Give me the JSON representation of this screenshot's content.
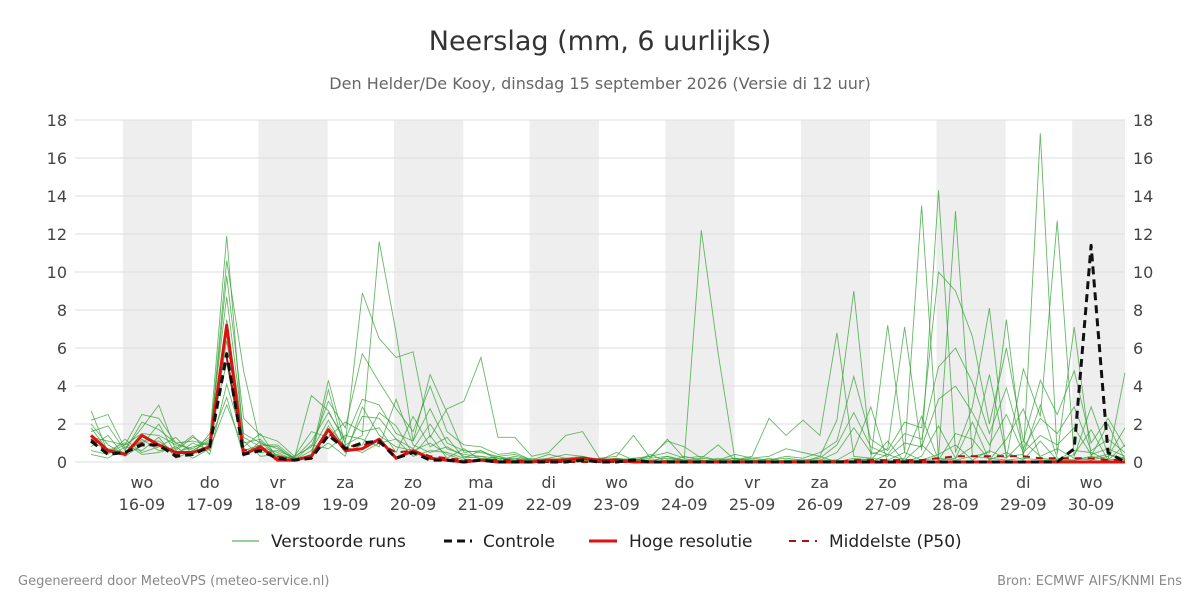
{
  "chart_data": {
    "type": "line",
    "title": "Neerslag (mm, 6 uurlijks)",
    "subtitle": "Den Helder/De Kooy, dinsdag 15 september 2026 (Versie di 12 uur)",
    "ylim": [
      0,
      18
    ],
    "yticks": [
      0,
      2,
      4,
      6,
      8,
      10,
      12,
      14,
      16,
      18
    ],
    "grid": true,
    "x_start_day": 15.5,
    "x_end_day": 30.5,
    "day_labels": [
      {
        "day": 16,
        "weekday": "wo",
        "date": "16-09"
      },
      {
        "day": 17,
        "weekday": "do",
        "date": "17-09"
      },
      {
        "day": 18,
        "weekday": "vr",
        "date": "18-09"
      },
      {
        "day": 19,
        "weekday": "za",
        "date": "19-09"
      },
      {
        "day": 20,
        "weekday": "zo",
        "date": "20-09"
      },
      {
        "day": 21,
        "weekday": "ma",
        "date": "21-09"
      },
      {
        "day": 22,
        "weekday": "di",
        "date": "22-09"
      },
      {
        "day": 23,
        "weekday": "wo",
        "date": "23-09"
      },
      {
        "day": 24,
        "weekday": "do",
        "date": "24-09"
      },
      {
        "day": 25,
        "weekday": "vr",
        "date": "25-09"
      },
      {
        "day": 26,
        "weekday": "za",
        "date": "26-09"
      },
      {
        "day": 27,
        "weekday": "zo",
        "date": "27-09"
      },
      {
        "day": 28,
        "weekday": "ma",
        "date": "28-09"
      },
      {
        "day": 29,
        "weekday": "di",
        "date": "29-09"
      },
      {
        "day": 30,
        "weekday": "wo",
        "date": "30-09"
      }
    ],
    "night_bands": [
      [
        15.72,
        16.74
      ],
      [
        17.72,
        18.74
      ],
      [
        19.72,
        20.74
      ],
      [
        21.72,
        22.74
      ],
      [
        23.72,
        24.74
      ],
      [
        25.72,
        26.74
      ],
      [
        27.72,
        28.74
      ],
      [
        29.72,
        30.5
      ]
    ],
    "x": [
      15.25,
      15.5,
      15.75,
      16.0,
      16.25,
      16.5,
      16.75,
      17.0,
      17.25,
      17.5,
      17.75,
      18.0,
      18.25,
      18.5,
      18.75,
      19.0,
      19.25,
      19.5,
      19.75,
      20.0,
      20.25,
      20.5,
      20.75,
      21.0,
      21.25,
      21.5,
      21.75,
      22.0,
      22.25,
      22.5,
      22.75,
      23.0,
      23.25,
      23.5,
      23.75,
      24.0,
      24.25,
      24.5,
      24.75,
      25.0,
      25.25,
      25.5,
      25.75,
      26.0,
      26.25,
      26.5,
      26.75,
      27.0,
      27.25,
      27.5,
      27.75,
      28.0,
      28.25,
      28.5,
      28.75,
      29.0,
      29.25,
      29.5,
      29.75,
      30.0,
      30.25,
      30.5
    ],
    "legend": {
      "placement": "bottom",
      "entries": [
        "Verstoorde runs",
        "Controle",
        "Hoge resolutie",
        "Middelste (P50)"
      ]
    },
    "series": [
      {
        "name": "Controle",
        "color": "#111111",
        "style": "dashed",
        "values": [
          1.1,
          0.4,
          0.5,
          0.9,
          0.9,
          0.3,
          0.4,
          0.8,
          5.7,
          0.4,
          0.6,
          0.2,
          0.1,
          0.2,
          1.4,
          0.7,
          1.0,
          1.1,
          0.2,
          0.5,
          0.1,
          0.1,
          0.0,
          0.1,
          0.0,
          0.0,
          0.0,
          0.0,
          0.0,
          0.1,
          0.0,
          0.0,
          0.1,
          0.0,
          0.0,
          0.0,
          0.0,
          0.0,
          0.0,
          0.0,
          0.0,
          0.0,
          0.0,
          0.0,
          0.0,
          0.0,
          0.0,
          0.0,
          0.0,
          0.0,
          0.0,
          0.0,
          0.0,
          0.0,
          0.0,
          0.0,
          0.0,
          0.0,
          0.7,
          11.4,
          0.5,
          0.0
        ]
      },
      {
        "name": "Hoge resolutie",
        "color": "#dd1111",
        "style": "solid",
        "values": [
          1.4,
          0.6,
          0.4,
          1.4,
          0.9,
          0.5,
          0.5,
          0.8,
          7.2,
          0.4,
          0.8,
          0.1,
          0.1,
          0.3,
          1.7,
          0.6,
          0.7,
          1.2,
          0.2,
          0.6,
          0.2,
          0.1,
          0.0,
          0.1,
          0.0,
          0.0,
          0.0,
          0.1,
          0.1,
          0.2,
          0.1,
          0.1,
          0.0,
          0.0,
          0.0,
          0.0,
          0.0,
          0.0,
          0.0,
          0.0,
          0.0,
          0.0,
          0.0,
          0.0,
          0.0,
          0.0,
          0.0,
          0.0,
          0.0,
          0.0,
          0.0,
          0.0,
          0.0,
          0.0,
          0.0,
          0.0,
          0.0,
          0.0,
          0.0,
          0.0,
          0.0,
          0.0
        ]
      },
      {
        "name": "Middelste (P50)",
        "color": "#aa1111",
        "style": "dashed",
        "values": [
          1.2,
          0.5,
          0.5,
          1.0,
          0.8,
          0.4,
          0.5,
          0.7,
          5.5,
          0.6,
          0.7,
          0.3,
          0.1,
          0.3,
          1.5,
          0.8,
          0.9,
          1.0,
          0.5,
          0.6,
          0.3,
          0.2,
          0.1,
          0.1,
          0.1,
          0.1,
          0.0,
          0.0,
          0.0,
          0.0,
          0.0,
          0.0,
          0.0,
          0.0,
          0.0,
          0.0,
          0.0,
          0.0,
          0.0,
          0.0,
          0.0,
          0.0,
          0.0,
          0.0,
          0.0,
          0.1,
          0.1,
          0.1,
          0.1,
          0.1,
          0.2,
          0.3,
          0.3,
          0.3,
          0.3,
          0.3,
          0.2,
          0.2,
          0.2,
          0.2,
          0.1,
          0.1
        ]
      }
    ],
    "ensemble": {
      "name": "Verstoorde runs",
      "color": "#33a033",
      "members": [
        [
          2.7,
          0.5,
          0.9,
          2.5,
          2.3,
          1.0,
          0.6,
          1.2,
          11.9,
          1.0,
          1.2,
          0.3,
          0.2,
          3.5,
          2.7,
          1.0,
          8.9,
          6.5,
          5.5,
          5.8,
          1.3,
          2.8,
          3.2,
          5.5,
          1.3,
          1.3,
          0.3,
          0.5,
          1.4,
          1.6,
          0.2,
          0.3,
          1.4,
          0.2,
          1.2,
          0.2,
          12.2,
          5.7,
          0.1,
          0.3,
          2.3,
          1.4,
          2.2,
          1.4,
          6.8,
          0.3,
          0.2,
          7.2,
          0.5,
          13.5,
          0.2,
          13.2,
          0.3,
          0.5,
          7.5,
          0.2,
          17.3,
          0.4,
          7.1,
          0.3,
          0.1,
          4.7
        ],
        [
          2.2,
          2.5,
          0.7,
          1.8,
          3.0,
          0.6,
          1.3,
          0.8,
          10.6,
          4.8,
          0.9,
          0.8,
          0.1,
          0.4,
          4.3,
          0.9,
          1.4,
          11.6,
          6.8,
          1.1,
          4.6,
          2.6,
          0.5,
          0.6,
          0.2,
          0.2,
          0.1,
          0.4,
          0.2,
          0.3,
          0.1,
          0.5,
          0.1,
          0.3,
          1.1,
          0.8,
          0.2,
          0.9,
          0.1,
          0.2,
          0.3,
          0.7,
          0.5,
          0.3,
          2.2,
          9.0,
          0.4,
          0.7,
          7.1,
          0.6,
          14.3,
          0.5,
          2.9,
          8.1,
          0.2,
          4.9,
          2.4,
          12.7,
          0.3,
          2.9,
          0.4,
          0.2
        ],
        [
          1.6,
          1.9,
          0.6,
          2.1,
          1.7,
          1.0,
          1.1,
          0.9,
          9.8,
          2.3,
          1.4,
          1.1,
          0.3,
          0.8,
          3.2,
          1.8,
          5.7,
          4.2,
          2.8,
          1.6,
          4.0,
          1.6,
          0.9,
          0.8,
          0.4,
          0.5,
          0.1,
          0.2,
          0.4,
          0.3,
          0.1,
          0.1,
          0.2,
          0.3,
          0.5,
          0.2,
          0.3,
          0.1,
          0.4,
          0.2,
          0.1,
          0.3,
          0.2,
          0.5,
          1.1,
          4.5,
          1.2,
          0.6,
          2.1,
          1.8,
          10.0,
          9.0,
          6.6,
          2.0,
          6.0,
          1.1,
          4.3,
          2.5,
          4.8,
          1.0,
          2.3,
          0.8
        ],
        [
          1.3,
          1.1,
          0.9,
          1.5,
          1.4,
          0.9,
          0.7,
          1.3,
          8.7,
          1.5,
          1.0,
          0.7,
          0.2,
          1.1,
          2.6,
          1.2,
          3.3,
          3.0,
          1.5,
          1.1,
          2.8,
          1.0,
          0.6,
          0.5,
          0.3,
          0.4,
          0.1,
          0.1,
          0.2,
          0.1,
          0.1,
          0.2,
          0.1,
          0.2,
          0.3,
          0.1,
          0.2,
          0.1,
          0.2,
          0.1,
          0.1,
          0.2,
          0.1,
          0.2,
          0.9,
          2.6,
          0.8,
          0.4,
          1.5,
          1.2,
          5.0,
          6.0,
          4.2,
          1.5,
          3.9,
          0.7,
          2.3,
          1.5,
          2.9,
          0.6,
          1.2,
          0.5
        ],
        [
          1.0,
          0.7,
          0.5,
          1.1,
          1.1,
          0.5,
          0.8,
          1.0,
          7.5,
          1.3,
          0.8,
          0.5,
          0.1,
          0.6,
          2.2,
          0.6,
          2.4,
          2.3,
          1.2,
          0.7,
          2.0,
          0.7,
          0.4,
          0.3,
          0.2,
          0.2,
          0.0,
          0.1,
          0.1,
          0.1,
          0.0,
          0.1,
          0.1,
          0.1,
          0.2,
          0.1,
          0.1,
          0.0,
          0.1,
          0.1,
          0.0,
          0.1,
          0.1,
          0.1,
          0.5,
          1.8,
          0.5,
          0.3,
          1.0,
          0.8,
          3.3,
          4.0,
          2.6,
          0.9,
          2.5,
          0.5,
          1.4,
          0.9,
          1.8,
          0.4,
          0.7,
          0.3
        ],
        [
          0.8,
          1.4,
          0.3,
          0.9,
          2.0,
          0.4,
          1.0,
          0.6,
          6.4,
          0.8,
          1.5,
          0.2,
          0.3,
          1.6,
          1.3,
          2.1,
          1.6,
          1.8,
          0.5,
          2.4,
          0.8,
          1.3,
          0.2,
          0.6,
          0.1,
          0.0,
          0.2,
          0.0,
          0.0,
          0.2,
          0.0,
          0.0,
          0.0,
          0.4,
          0.0,
          0.0,
          0.0,
          0.1,
          0.0,
          0.0,
          0.2,
          0.0,
          0.0,
          0.0,
          0.1,
          0.6,
          2.9,
          0.0,
          0.2,
          2.4,
          0.1,
          1.5,
          1.2,
          0.1,
          1.2,
          2.8,
          0.2,
          0.1,
          0.4,
          1.7,
          0.1,
          0.9
        ],
        [
          0.6,
          0.4,
          1.2,
          0.5,
          0.8,
          1.3,
          0.4,
          1.5,
          5.2,
          0.6,
          0.9,
          0.9,
          0.2,
          0.3,
          3.8,
          0.5,
          0.9,
          2.6,
          1.9,
          0.4,
          1.4,
          0.2,
          0.7,
          0.1,
          0.3,
          0.1,
          0.0,
          0.0,
          0.1,
          0.0,
          0.1,
          0.0,
          0.2,
          0.0,
          0.1,
          0.0,
          0.0,
          0.0,
          0.1,
          0.0,
          0.0,
          0.0,
          0.1,
          0.0,
          0.0,
          0.2,
          0.1,
          1.1,
          0.0,
          0.3,
          1.9,
          0.2,
          0.8,
          4.6,
          0.3,
          0.4,
          3.0,
          0.2,
          0.1,
          0.3,
          2.0,
          0.1
        ],
        [
          2.0,
          0.9,
          0.4,
          1.2,
          0.6,
          0.7,
          1.4,
          0.4,
          4.1,
          1.1,
          0.3,
          0.4,
          0.1,
          0.9,
          0.7,
          1.4,
          1.2,
          0.8,
          3.3,
          0.9,
          0.5,
          0.8,
          0.3,
          0.2,
          0.1,
          0.3,
          0.1,
          0.1,
          0.0,
          0.0,
          0.2,
          0.1,
          0.0,
          0.1,
          0.0,
          0.3,
          0.1,
          0.0,
          0.0,
          0.1,
          0.0,
          0.1,
          0.0,
          0.1,
          0.1,
          0.0,
          0.2,
          0.1,
          0.5,
          0.1,
          0.4,
          0.9,
          0.1,
          0.6,
          0.2,
          1.1,
          0.3,
          0.7,
          0.2,
          0.1,
          0.3,
          1.8
        ],
        [
          0.4,
          0.2,
          0.8,
          0.6,
          1.3,
          0.2,
          0.6,
          1.1,
          3.4,
          0.3,
          1.1,
          0.2,
          0.1,
          0.4,
          1.0,
          0.3,
          2.9,
          1.4,
          0.8,
          0.6,
          1.0,
          0.4,
          0.1,
          0.1,
          0.2,
          0.1,
          0.0,
          0.0,
          0.0,
          0.1,
          0.0,
          0.2,
          0.0,
          0.0,
          0.3,
          0.0,
          0.0,
          0.2,
          0.0,
          0.0,
          0.1,
          0.0,
          0.0,
          0.3,
          0.0,
          0.1,
          0.0,
          0.4,
          0.1,
          0.9,
          0.1,
          0.2,
          2.1,
          0.1,
          0.5,
          0.1,
          1.1,
          0.1,
          0.6,
          0.5,
          0.1,
          0.2
        ],
        [
          1.8,
          0.6,
          1.0,
          0.4,
          0.5,
          0.8,
          0.2,
          0.7,
          3.0,
          0.7,
          0.5,
          0.6,
          0.2,
          0.2,
          1.9,
          0.8,
          0.5,
          1.0,
          1.2,
          0.3,
          0.6,
          0.5,
          0.2,
          0.3,
          0.0,
          0.1,
          0.1,
          0.0,
          0.0,
          0.0,
          0.0,
          0.0,
          0.0,
          0.0,
          0.1,
          0.1,
          0.0,
          0.0,
          0.2,
          0.0,
          0.0,
          0.0,
          0.0,
          0.0,
          0.0,
          0.0,
          0.1,
          0.0,
          0.1,
          0.1,
          0.2,
          0.1,
          0.3,
          0.2,
          0.1,
          0.2,
          0.1,
          0.1,
          0.1,
          0.2,
          0.4,
          0.1
        ]
      ]
    },
    "axis_tick_color": "#444444"
  },
  "footer": {
    "left": "Gegenereerd door MeteoVPS (meteo-service.nl)",
    "right": "Bron: ECMWF AIFS/KNMI Ens"
  }
}
